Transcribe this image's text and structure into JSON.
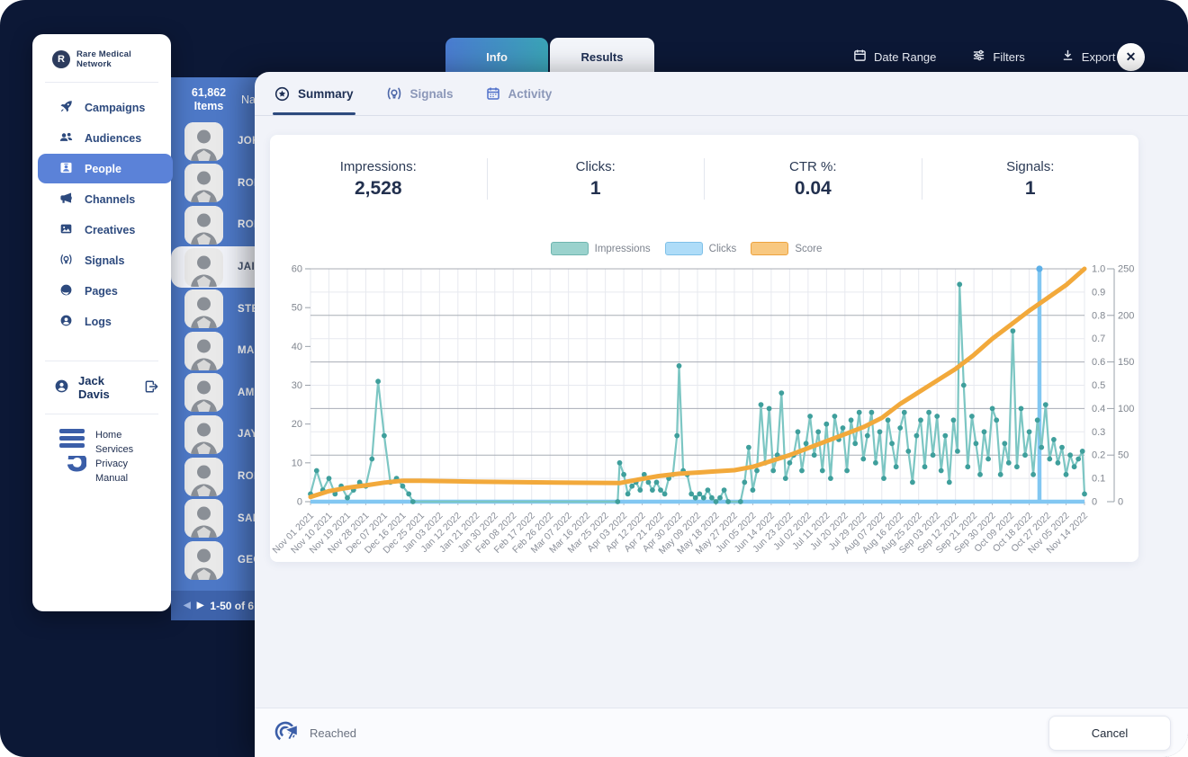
{
  "topbar": {
    "tabs": [
      {
        "label": "Info"
      },
      {
        "label": "Results"
      }
    ],
    "actions": [
      {
        "label": "Date Range",
        "icon": "calendar-icon"
      },
      {
        "label": "Filters",
        "icon": "filters-icon"
      },
      {
        "label": "Export",
        "icon": "download-icon"
      }
    ],
    "close_glyph": "✕"
  },
  "sidebar": {
    "brand": "Rare Medical Network",
    "brand_initial": "R",
    "nav": [
      {
        "label": "Campaigns",
        "icon": "rocket-icon",
        "active": false
      },
      {
        "label": "Audiences",
        "icon": "people-group-icon",
        "active": false
      },
      {
        "label": "People",
        "icon": "id-badge-icon",
        "active": true
      },
      {
        "label": "Channels",
        "icon": "megaphone-icon",
        "active": false
      },
      {
        "label": "Creatives",
        "icon": "image-icon",
        "active": false
      },
      {
        "label": "Signals",
        "icon": "signal-bulb-icon",
        "active": false
      },
      {
        "label": "Pages",
        "icon": "globe-icon",
        "active": false
      },
      {
        "label": "Logs",
        "icon": "user-circle-icon",
        "active": false
      }
    ],
    "user": {
      "name": "Jack Davis"
    },
    "footer_links": [
      "Home",
      "Services",
      "Privacy",
      "Manual"
    ]
  },
  "people_panel": {
    "items_count": "61,862",
    "items_label": "Items",
    "name_column": "Nam",
    "rows": [
      {
        "name": "JOH"
      },
      {
        "name": "ROB"
      },
      {
        "name": "RON"
      },
      {
        "name": "JAIN",
        "selected": true
      },
      {
        "name": "STE"
      },
      {
        "name": "MAR"
      },
      {
        "name": "AMI"
      },
      {
        "name": "JAY"
      },
      {
        "name": "ROB"
      },
      {
        "name": "SAN"
      },
      {
        "name": "GEO"
      }
    ],
    "pagination": "1-50 of 6",
    "prev_glyph": "◀",
    "next_glyph": "▶"
  },
  "modal": {
    "tabs": [
      {
        "label": "Summary",
        "icon": "star-circle-icon",
        "active": true
      },
      {
        "label": "Signals",
        "icon": "signal-bulb-icon",
        "active": false
      },
      {
        "label": "Activity",
        "icon": "calendar-icon",
        "active": false
      }
    ],
    "stats": [
      {
        "label": "Impressions:",
        "value": "2,528"
      },
      {
        "label": "Clicks:",
        "value": "1"
      },
      {
        "label": "CTR %:",
        "value": "0.04"
      },
      {
        "label": "Signals:",
        "value": "1"
      }
    ],
    "footer": {
      "status": "Reached",
      "cancel_label": "Cancel"
    }
  },
  "chart_data": {
    "type": "line",
    "title": "",
    "xlabel": "",
    "ylabel": "",
    "x_ticks": [
      "Nov 01 2021",
      "Nov 10 2021",
      "Nov 19 2021",
      "Nov 28 2021",
      "Dec 07 2021",
      "Dec 16 2021",
      "Dec 25 2021",
      "Jan 03 2022",
      "Jan 12 2022",
      "Jan 21 2022",
      "Jan 30 2022",
      "Feb 08 2022",
      "Feb 17 2022",
      "Feb 26 2022",
      "Mar 07 2022",
      "Mar 16 2022",
      "Mar 25 2022",
      "Apr 03 2022",
      "Apr 12 2022",
      "Apr 21 2022",
      "Apr 30 2022",
      "May 09 2022",
      "May 18 2022",
      "May 27 2022",
      "Jun 05 2022",
      "Jun 14 2022",
      "Jun 23 2022",
      "Jul 02 2022",
      "Jul 11 2022",
      "Jul 20 2022",
      "Jul 29 2022",
      "Aug 07 2022",
      "Aug 16 2022",
      "Aug 25 2022",
      "Sep 03 2022",
      "Sep 12 2022",
      "Sep 21 2022",
      "Sep 30 2022",
      "Oct 09 2022",
      "Oct 18 2022",
      "Oct 27 2022",
      "Nov 05 2022",
      "Nov 14 2022"
    ],
    "tick_interval_days": 9,
    "total_days": 378,
    "grid": true,
    "legend_position": "top-center",
    "left_axis": {
      "range": [
        0,
        60
      ],
      "ticks": [
        0,
        10,
        20,
        30,
        40,
        50,
        60
      ]
    },
    "right_axis_1": {
      "range": [
        0,
        1
      ],
      "ticks": [
        0,
        0.1,
        0.2,
        0.3,
        0.4,
        0.5,
        0.6,
        0.7,
        0.8,
        0.9,
        1.0
      ]
    },
    "right_axis_2": {
      "range": [
        0,
        250
      ],
      "ticks": [
        0,
        50,
        100,
        150,
        200,
        250
      ]
    },
    "legend": [
      {
        "name": "Impressions",
        "fill": "#9ad2cd",
        "border": "#6fb5af"
      },
      {
        "name": "Clicks",
        "fill": "#aedcf8",
        "border": "#7fc0e8"
      },
      {
        "name": "Score",
        "fill": "#f8c880",
        "border": "#eda33f"
      }
    ],
    "series": {
      "impressions": {
        "axis": "left",
        "line_color": "#7cc6c3",
        "dot_color": "#3f9f9c",
        "points": [
          [
            0,
            2
          ],
          [
            3,
            8
          ],
          [
            6,
            3
          ],
          [
            9,
            6
          ],
          [
            12,
            2
          ],
          [
            15,
            4
          ],
          [
            18,
            1
          ],
          [
            21,
            3
          ],
          [
            24,
            5
          ],
          [
            27,
            4
          ],
          [
            30,
            11
          ],
          [
            33,
            31
          ],
          [
            36,
            17
          ],
          [
            39,
            5
          ],
          [
            42,
            6
          ],
          [
            45,
            4
          ],
          [
            48,
            2
          ],
          [
            50,
            0
          ],
          [
            150,
            0
          ],
          [
            151,
            10
          ],
          [
            153,
            7
          ],
          [
            155,
            2
          ],
          [
            157,
            4
          ],
          [
            159,
            5
          ],
          [
            161,
            3
          ],
          [
            163,
            7
          ],
          [
            165,
            5
          ],
          [
            167,
            3
          ],
          [
            169,
            5
          ],
          [
            171,
            3
          ],
          [
            173,
            2
          ],
          [
            175,
            6
          ],
          [
            177,
            7
          ],
          [
            179,
            17
          ],
          [
            180,
            35
          ],
          [
            182,
            8
          ],
          [
            184,
            7
          ],
          [
            186,
            2
          ],
          [
            188,
            1
          ],
          [
            190,
            2
          ],
          [
            192,
            1
          ],
          [
            194,
            3
          ],
          [
            196,
            1
          ],
          [
            198,
            0
          ],
          [
            200,
            1
          ],
          [
            202,
            3
          ],
          [
            204,
            0
          ],
          [
            210,
            0
          ],
          [
            212,
            5
          ],
          [
            214,
            14
          ],
          [
            216,
            3
          ],
          [
            218,
            8
          ],
          [
            220,
            25
          ],
          [
            222,
            10
          ],
          [
            224,
            24
          ],
          [
            226,
            8
          ],
          [
            228,
            12
          ],
          [
            230,
            28
          ],
          [
            232,
            6
          ],
          [
            234,
            10
          ],
          [
            236,
            12
          ],
          [
            238,
            18
          ],
          [
            240,
            8
          ],
          [
            242,
            15
          ],
          [
            244,
            22
          ],
          [
            246,
            12
          ],
          [
            248,
            18
          ],
          [
            250,
            8
          ],
          [
            252,
            20
          ],
          [
            254,
            6
          ],
          [
            256,
            22
          ],
          [
            258,
            16
          ],
          [
            260,
            19
          ],
          [
            262,
            8
          ],
          [
            264,
            21
          ],
          [
            266,
            15
          ],
          [
            268,
            23
          ],
          [
            270,
            11
          ],
          [
            272,
            17
          ],
          [
            274,
            23
          ],
          [
            276,
            10
          ],
          [
            278,
            18
          ],
          [
            280,
            6
          ],
          [
            282,
            21
          ],
          [
            284,
            15
          ],
          [
            286,
            9
          ],
          [
            288,
            19
          ],
          [
            290,
            23
          ],
          [
            292,
            13
          ],
          [
            294,
            5
          ],
          [
            296,
            17
          ],
          [
            298,
            21
          ],
          [
            300,
            9
          ],
          [
            302,
            23
          ],
          [
            304,
            12
          ],
          [
            306,
            22
          ],
          [
            308,
            8
          ],
          [
            310,
            17
          ],
          [
            312,
            5
          ],
          [
            314,
            21
          ],
          [
            316,
            13
          ],
          [
            317,
            56
          ],
          [
            319,
            30
          ],
          [
            321,
            9
          ],
          [
            323,
            22
          ],
          [
            325,
            15
          ],
          [
            327,
            7
          ],
          [
            329,
            18
          ],
          [
            331,
            11
          ],
          [
            333,
            24
          ],
          [
            335,
            21
          ],
          [
            337,
            7
          ],
          [
            339,
            15
          ],
          [
            341,
            10
          ],
          [
            343,
            44
          ],
          [
            345,
            9
          ],
          [
            347,
            24
          ],
          [
            349,
            12
          ],
          [
            351,
            18
          ],
          [
            353,
            7
          ],
          [
            355,
            21
          ],
          [
            357,
            14
          ],
          [
            359,
            25
          ],
          [
            361,
            11
          ],
          [
            363,
            16
          ],
          [
            365,
            10
          ],
          [
            367,
            14
          ],
          [
            369,
            7
          ],
          [
            371,
            12
          ],
          [
            373,
            9
          ],
          [
            375,
            11
          ],
          [
            377,
            13
          ],
          [
            378,
            2
          ]
        ]
      },
      "clicks": {
        "axis": "right_1",
        "color": "#82c7f2",
        "dot_color": "#5db0e8",
        "baseline": 0,
        "events": [
          {
            "day": 356,
            "value": 1
          }
        ]
      },
      "score": {
        "axis": "right_1",
        "color": "#f2a93b",
        "points": [
          [
            0,
            0.02
          ],
          [
            9,
            0.045
          ],
          [
            18,
            0.06
          ],
          [
            27,
            0.07
          ],
          [
            36,
            0.082
          ],
          [
            45,
            0.09
          ],
          [
            54,
            0.09
          ],
          [
            80,
            0.086
          ],
          [
            120,
            0.082
          ],
          [
            151,
            0.08
          ],
          [
            160,
            0.095
          ],
          [
            170,
            0.11
          ],
          [
            180,
            0.12
          ],
          [
            189,
            0.125
          ],
          [
            198,
            0.13
          ],
          [
            207,
            0.135
          ],
          [
            216,
            0.15
          ],
          [
            225,
            0.175
          ],
          [
            234,
            0.2
          ],
          [
            243,
            0.23
          ],
          [
            252,
            0.26
          ],
          [
            261,
            0.29
          ],
          [
            270,
            0.32
          ],
          [
            279,
            0.36
          ],
          [
            288,
            0.42
          ],
          [
            297,
            0.47
          ],
          [
            306,
            0.52
          ],
          [
            315,
            0.57
          ],
          [
            324,
            0.63
          ],
          [
            333,
            0.7
          ],
          [
            342,
            0.76
          ],
          [
            351,
            0.82
          ],
          [
            360,
            0.875
          ],
          [
            369,
            0.93
          ],
          [
            378,
            1.0
          ]
        ]
      }
    }
  }
}
